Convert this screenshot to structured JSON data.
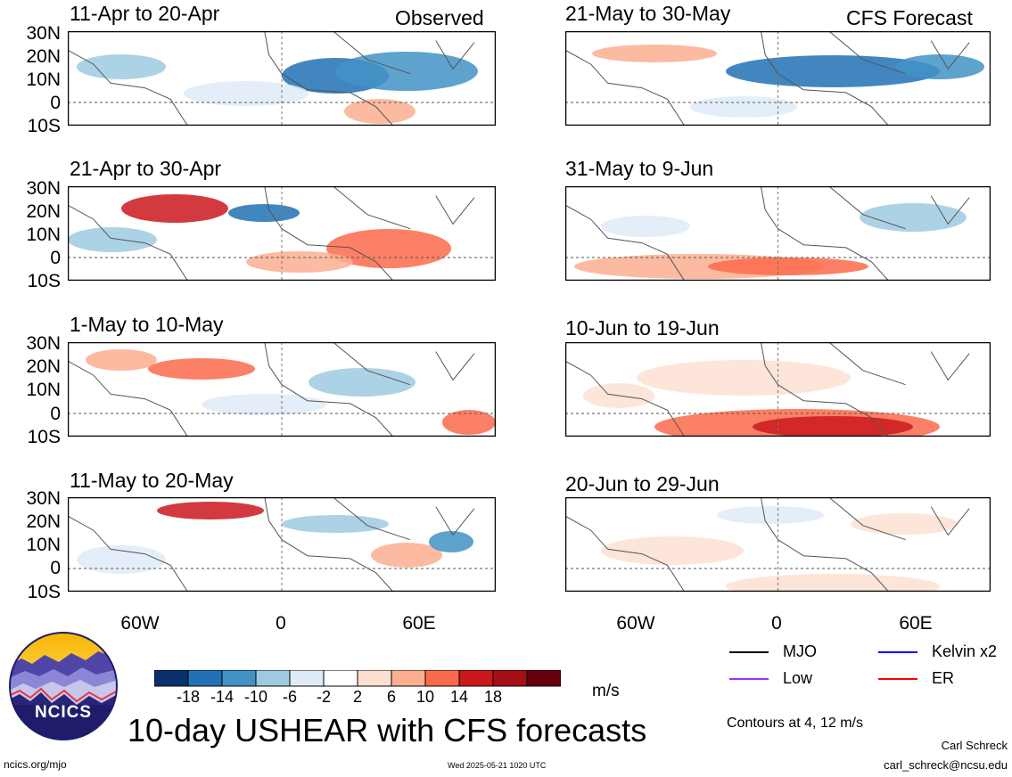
{
  "panels": [
    {
      "title": "11-Apr to 20-Apr",
      "tag": "Observed"
    },
    {
      "title": "21-Apr to 30-Apr",
      "tag": ""
    },
    {
      "title": "1-May to 10-May",
      "tag": ""
    },
    {
      "title": "11-May to 20-May",
      "tag": ""
    },
    {
      "title": "21-May to 30-May",
      "tag": "CFS Forecast"
    },
    {
      "title": "31-May to 9-Jun",
      "tag": ""
    },
    {
      "title": "10-Jun to 19-Jun",
      "tag": ""
    },
    {
      "title": "20-Jun to 29-Jun",
      "tag": ""
    }
  ],
  "lat_labels": [
    "30N",
    "20N",
    "10N",
    "0",
    "10S"
  ],
  "lon_labels": [
    "60W",
    "0",
    "60E"
  ],
  "colorbar": {
    "colors": [
      "#08306b",
      "#2171b5",
      "#4292c6",
      "#9ecae1",
      "#deebf7",
      "#ffffff",
      "#fee0d2",
      "#fcae91",
      "#fb6a4a",
      "#cb181d",
      "#a50f15",
      "#67000d"
    ],
    "tick_labels": [
      "-18",
      "-14",
      "-10",
      "-6",
      "-2",
      "2",
      "6",
      "10",
      "14",
      "18"
    ],
    "units": "m/s"
  },
  "legend": {
    "items": [
      {
        "label": "MJO",
        "color": "#000000"
      },
      {
        "label": "Kelvin x2",
        "color": "#0000ff"
      },
      {
        "label": "Low",
        "color": "#9b30ff"
      },
      {
        "label": "ER",
        "color": "#ff0000"
      }
    ],
    "contours_note": "Contours at 4, 12 m/s"
  },
  "main_title": "10-day USHEAR with CFS forecasts",
  "logo_text": "NCICS",
  "footer": {
    "url": "ncics.org/mjo",
    "timestamp": "Wed 2025-05-21 1020 UTC",
    "author": "Carl Schreck",
    "email": "carl_schreck@ncsu.edu"
  }
}
